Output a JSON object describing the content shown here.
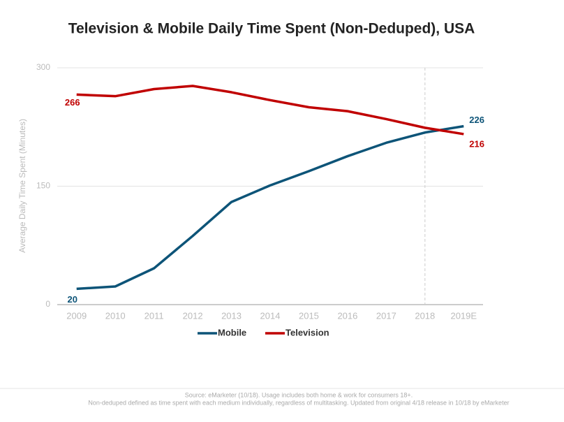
{
  "chart_data": {
    "type": "line",
    "title": "Television & Mobile Daily Time Spent (Non-Deduped), USA",
    "y_label": "Average Daily Time Spent (Minutes)",
    "categories": [
      "2009",
      "2010",
      "2011",
      "2012",
      "2013",
      "2014",
      "2015",
      "2016",
      "2017",
      "2018",
      "2019E"
    ],
    "series": [
      {
        "name": "Mobile",
        "color": "#0d5478",
        "values": [
          20,
          23,
          46,
          87,
          130,
          151,
          169,
          188,
          205,
          218,
          226
        ]
      },
      {
        "name": "Television",
        "color": "#c00000",
        "values": [
          266,
          264,
          273,
          277,
          269,
          259,
          250,
          245,
          235,
          224,
          216
        ]
      }
    ],
    "ylim": [
      0,
      300
    ],
    "yticks": [
      0,
      150,
      300
    ],
    "grid": true,
    "reference_line": "2018",
    "legend": "bottom",
    "source": [
      "Source: eMarketer (10/18). Usage includes both home & work for consumers 18+.",
      "Non-deduped defined as time spent with each medium individually, regardless of multitasking. Updated from original 4/18 release in 10/18 by eMarketer"
    ]
  }
}
